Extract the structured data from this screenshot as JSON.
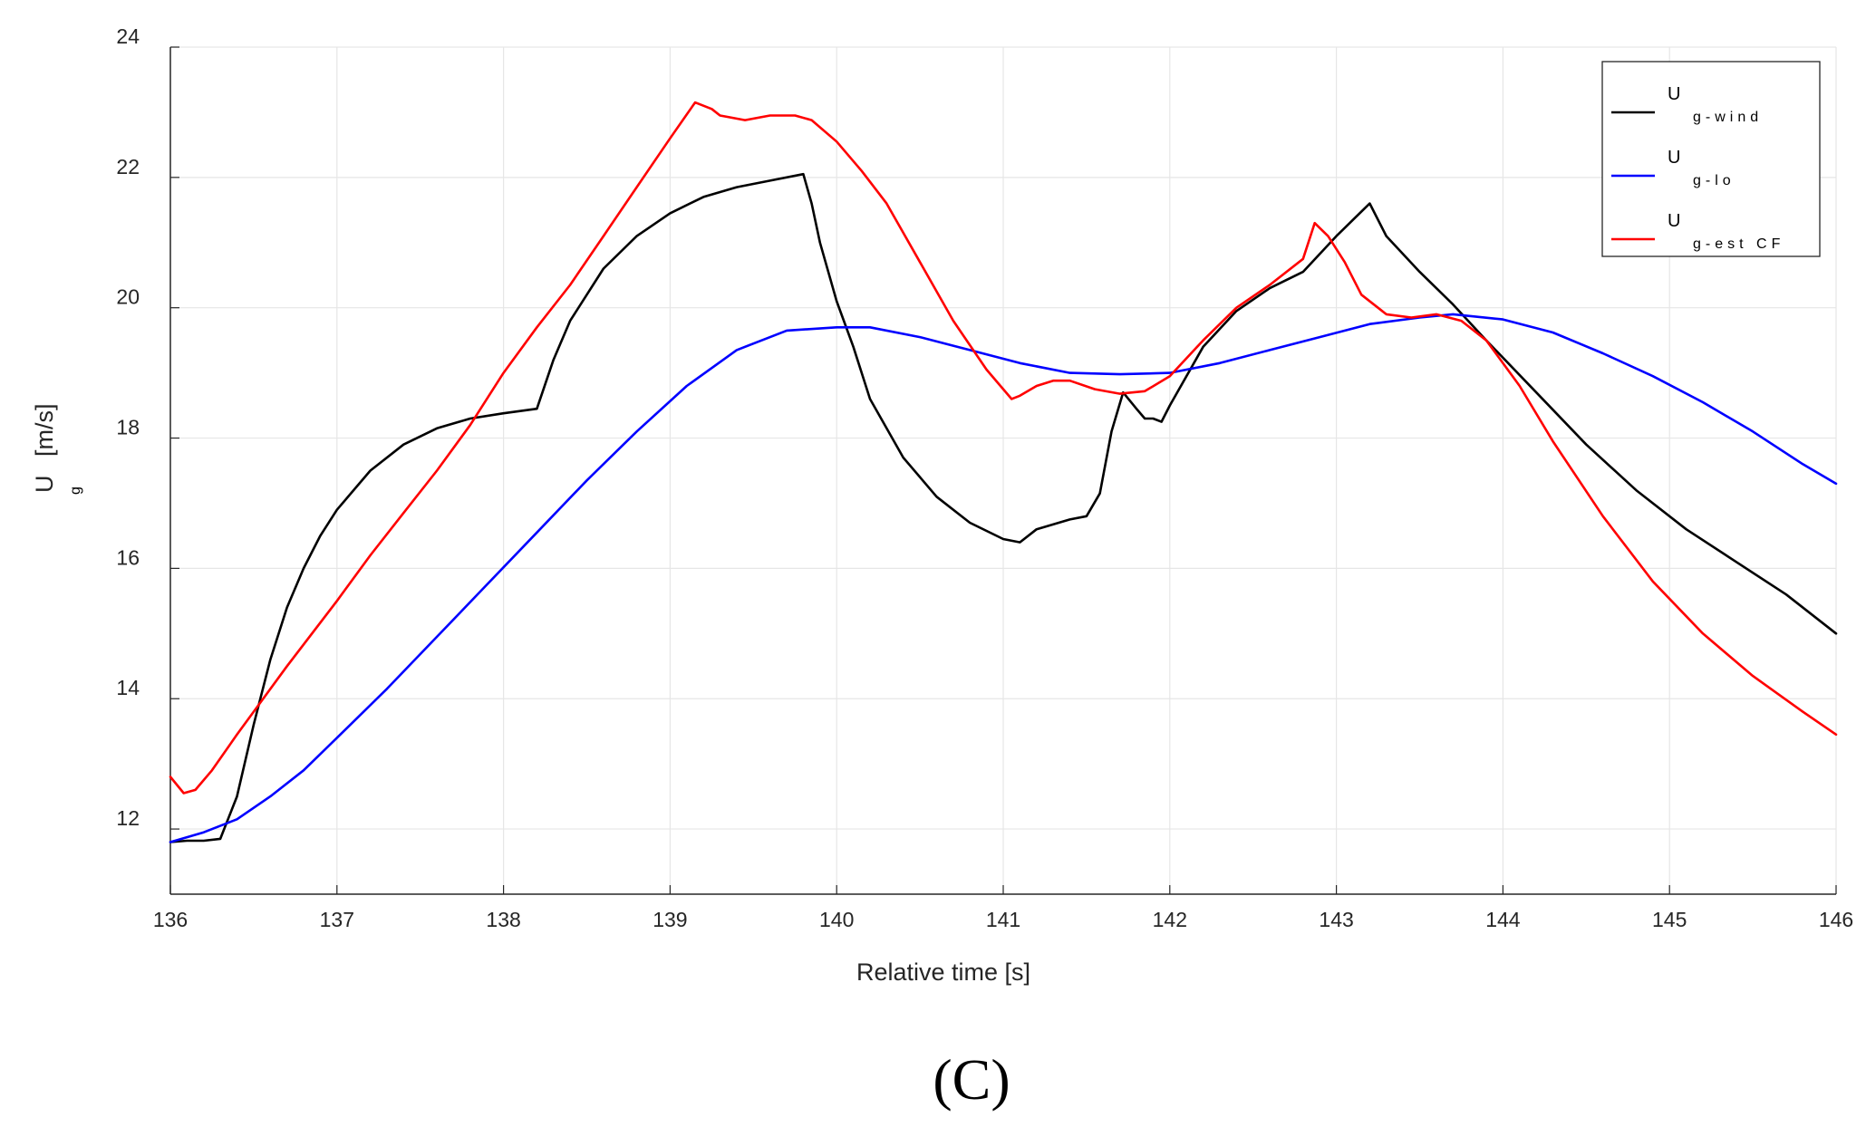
{
  "chart_data": {
    "type": "line",
    "title": "",
    "xlabel": "Relative time [s]",
    "ylabel": {
      "main": "U",
      "sub": "g",
      "unit": "[m/s]"
    },
    "xlim": [
      136,
      146
    ],
    "ylim": [
      11,
      24
    ],
    "xticks": [
      136,
      137,
      138,
      139,
      140,
      141,
      142,
      143,
      144,
      145,
      146
    ],
    "yticks": [
      12,
      14,
      16,
      18,
      20,
      22,
      24
    ],
    "grid": true,
    "legend_position": "top-right",
    "panel_label": "(C)",
    "series": [
      {
        "name": "U g-wind",
        "legend_main": "U",
        "legend_sub": "g-wind",
        "color": "#000000",
        "x": [
          136.0,
          136.1,
          136.2,
          136.3,
          136.4,
          136.5,
          136.6,
          136.7,
          136.8,
          136.9,
          137.0,
          137.2,
          137.4,
          137.6,
          137.8,
          138.0,
          138.2,
          138.3,
          138.4,
          138.6,
          138.8,
          139.0,
          139.2,
          139.4,
          139.6,
          139.8,
          139.85,
          139.9,
          140.0,
          140.1,
          140.2,
          140.4,
          140.6,
          140.8,
          141.0,
          141.1,
          141.2,
          141.4,
          141.5,
          141.58,
          141.65,
          141.72,
          141.8,
          141.85,
          141.9,
          141.95,
          142.0,
          142.2,
          142.4,
          142.6,
          142.8,
          143.0,
          143.1,
          143.2,
          143.3,
          143.5,
          143.7,
          143.9,
          144.2,
          144.5,
          144.8,
          145.1,
          145.4,
          145.7,
          146.0
        ],
        "y": [
          11.8,
          11.82,
          11.82,
          11.85,
          12.5,
          13.6,
          14.6,
          15.4,
          16.0,
          16.5,
          16.9,
          17.5,
          17.9,
          18.15,
          18.3,
          18.38,
          18.45,
          19.2,
          19.8,
          20.6,
          21.1,
          21.45,
          21.7,
          21.85,
          21.95,
          22.05,
          21.6,
          21.0,
          20.1,
          19.4,
          18.6,
          17.7,
          17.1,
          16.7,
          16.45,
          16.4,
          16.6,
          16.75,
          16.8,
          17.15,
          18.1,
          18.7,
          18.45,
          18.3,
          18.3,
          18.25,
          18.5,
          19.4,
          19.95,
          20.3,
          20.55,
          21.1,
          21.35,
          21.6,
          21.1,
          20.55,
          20.05,
          19.5,
          18.7,
          17.9,
          17.2,
          16.6,
          16.1,
          15.6,
          15.0
        ]
      },
      {
        "name": "U g-lo",
        "legend_main": "U",
        "legend_sub": "g-lo",
        "color": "#0000ff",
        "x": [
          136.0,
          136.2,
          136.4,
          136.6,
          136.8,
          137.0,
          137.3,
          137.6,
          137.9,
          138.2,
          138.5,
          138.8,
          139.1,
          139.4,
          139.7,
          140.0,
          140.2,
          140.5,
          140.8,
          141.1,
          141.4,
          141.7,
          142.0,
          142.3,
          142.6,
          142.9,
          143.2,
          143.5,
          143.7,
          144.0,
          144.3,
          144.6,
          144.9,
          145.2,
          145.5,
          145.8,
          146.0
        ],
        "y": [
          11.8,
          11.95,
          12.15,
          12.5,
          12.9,
          13.4,
          14.15,
          14.95,
          15.75,
          16.55,
          17.35,
          18.1,
          18.8,
          19.35,
          19.65,
          19.7,
          19.7,
          19.55,
          19.35,
          19.15,
          19.0,
          18.98,
          19.0,
          19.15,
          19.35,
          19.55,
          19.75,
          19.85,
          19.9,
          19.82,
          19.62,
          19.3,
          18.95,
          18.55,
          18.1,
          17.6,
          17.3
        ]
      },
      {
        "name": "U g-est CF",
        "legend_main": "U",
        "legend_sub": "g-est CF",
        "color": "#ff0000",
        "x": [
          136.0,
          136.08,
          136.15,
          136.25,
          136.4,
          136.5,
          136.7,
          137.0,
          137.2,
          137.4,
          137.6,
          137.8,
          138.0,
          138.2,
          138.4,
          138.6,
          138.8,
          139.0,
          139.15,
          139.25,
          139.3,
          139.45,
          139.6,
          139.75,
          139.85,
          140.0,
          140.15,
          140.3,
          140.5,
          140.7,
          140.9,
          141.05,
          141.1,
          141.2,
          141.3,
          141.4,
          141.55,
          141.7,
          141.85,
          142.0,
          142.2,
          142.4,
          142.6,
          142.8,
          142.87,
          142.95,
          143.05,
          143.15,
          143.3,
          143.45,
          143.6,
          143.75,
          143.9,
          144.1,
          144.3,
          144.6,
          144.9,
          145.2,
          145.5,
          145.8,
          146.0
        ],
        "y": [
          12.8,
          12.55,
          12.6,
          12.9,
          13.45,
          13.8,
          14.5,
          15.5,
          16.2,
          16.85,
          17.5,
          18.2,
          19.0,
          19.7,
          20.35,
          21.1,
          21.85,
          22.6,
          23.15,
          23.05,
          22.95,
          22.88,
          22.95,
          22.95,
          22.88,
          22.55,
          22.1,
          21.6,
          20.7,
          19.8,
          19.05,
          18.6,
          18.65,
          18.8,
          18.88,
          18.88,
          18.75,
          18.68,
          18.72,
          18.95,
          19.5,
          20.0,
          20.35,
          20.75,
          21.3,
          21.1,
          20.7,
          20.2,
          19.9,
          19.85,
          19.9,
          19.8,
          19.5,
          18.8,
          17.95,
          16.8,
          15.8,
          15.0,
          14.35,
          13.8,
          13.45
        ]
      }
    ]
  }
}
